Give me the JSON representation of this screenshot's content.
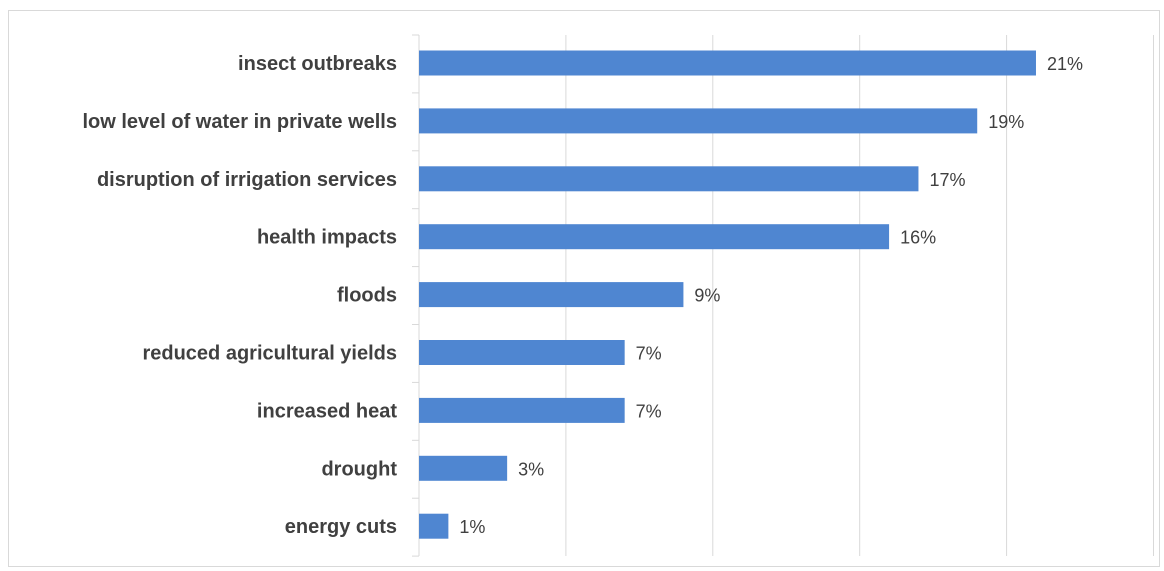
{
  "chart_data": {
    "type": "bar",
    "orientation": "horizontal",
    "categories": [
      "insect outbreaks",
      "low level of water in private wells",
      "disruption of irrigation services",
      "health impacts",
      "floods",
      "reduced agricultural yields",
      "increased heat",
      "drought",
      "energy cuts"
    ],
    "values": [
      21,
      19,
      17,
      16,
      9,
      7,
      7,
      3,
      1
    ],
    "value_labels": [
      "21%",
      "19%",
      "17%",
      "16%",
      "9%",
      "7%",
      "7%",
      "3%",
      "1%"
    ],
    "unit": "%",
    "title": "",
    "xlabel": "",
    "ylabel": "",
    "xlim": [
      0,
      25
    ],
    "grid": "vertical",
    "legend": "none",
    "colors": {
      "bar": "#4f86d1",
      "grid": "#d9d9d9",
      "category_text": "#404040",
      "value_text": "#404040",
      "frame": "#d9d9d9"
    }
  }
}
